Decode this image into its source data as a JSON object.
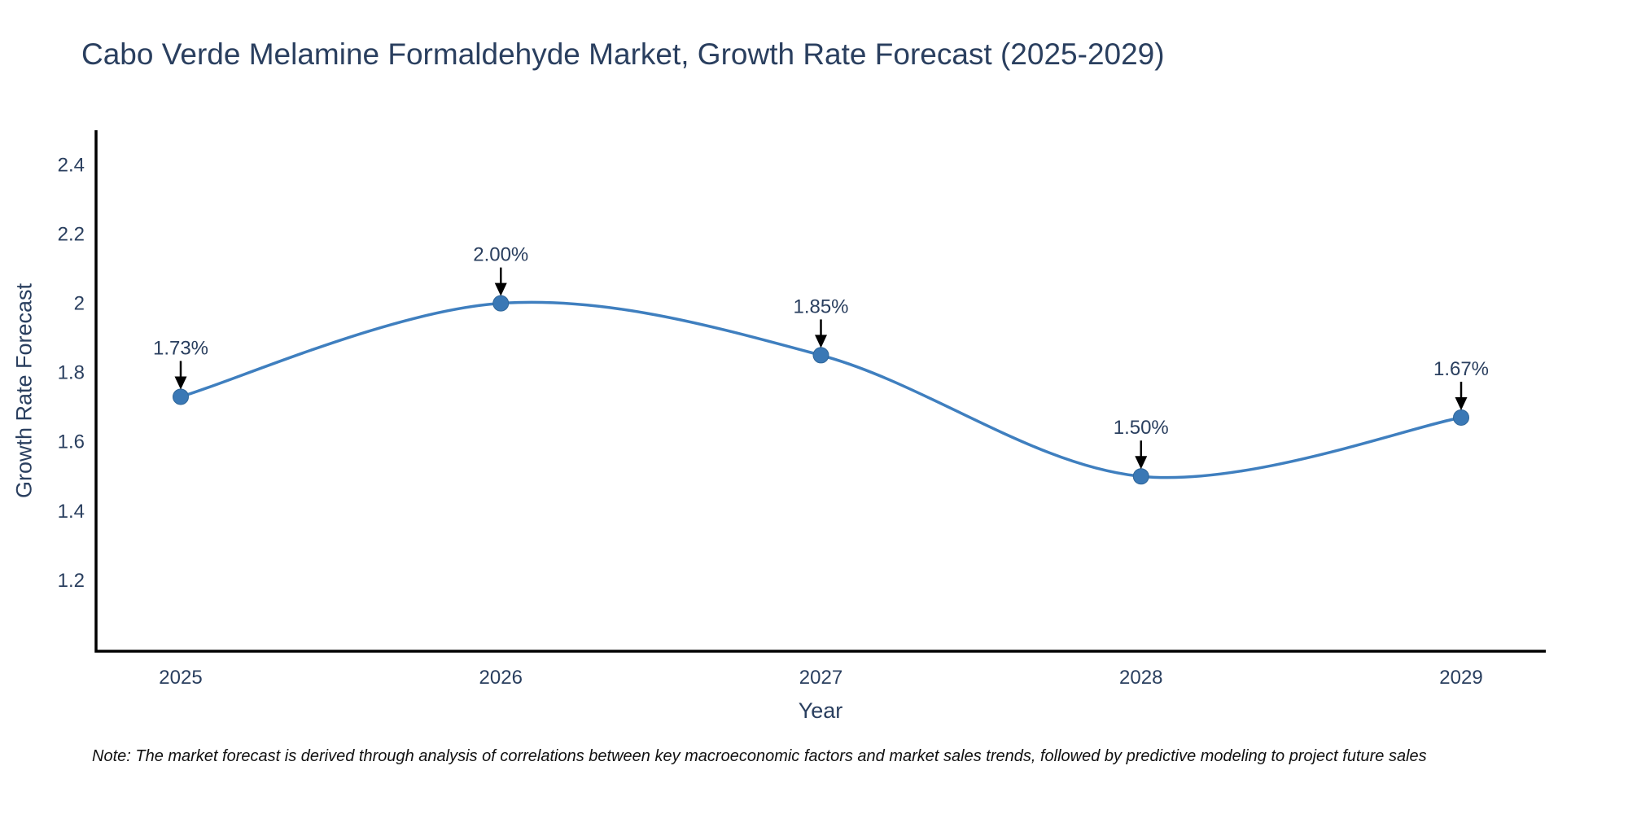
{
  "note": "Note: The market forecast is derived through analysis of correlations between key macroeconomic factors and market sales trends, followed by predictive modeling to project future sales",
  "chart_data": {
    "type": "line",
    "title": "Cabo Verde Melamine Formaldehyde Market, Growth Rate Forecast (2025-2029)",
    "xlabel": "Year",
    "ylabel": "Growth Rate Forecast",
    "x": [
      2025,
      2026,
      2027,
      2028,
      2029
    ],
    "values": [
      1.73,
      2.0,
      1.85,
      1.5,
      1.67
    ],
    "point_labels": [
      "1.73%",
      "2.00%",
      "1.85%",
      "1.50%",
      "1.67%"
    ],
    "yticks": [
      1.2,
      1.4,
      1.6,
      1.8,
      2,
      2.2,
      2.4
    ],
    "ytick_labels": [
      "1.2",
      "1.4",
      "1.6",
      "1.8",
      "2",
      "2.2",
      "2.4"
    ],
    "ylim": [
      0.995,
      2.5
    ],
    "line_shape": "spline",
    "grid": false,
    "legend": "none",
    "colors": {
      "line": "#3f7fbf",
      "marker": "#3a78b5",
      "marker_edge": "#2f6699",
      "axis": "#000000",
      "tick_text": "#2a3f5f",
      "annotation_text": "#2a3f5f",
      "arrow": "#000000",
      "title_text": "#2a3f5f"
    }
  }
}
